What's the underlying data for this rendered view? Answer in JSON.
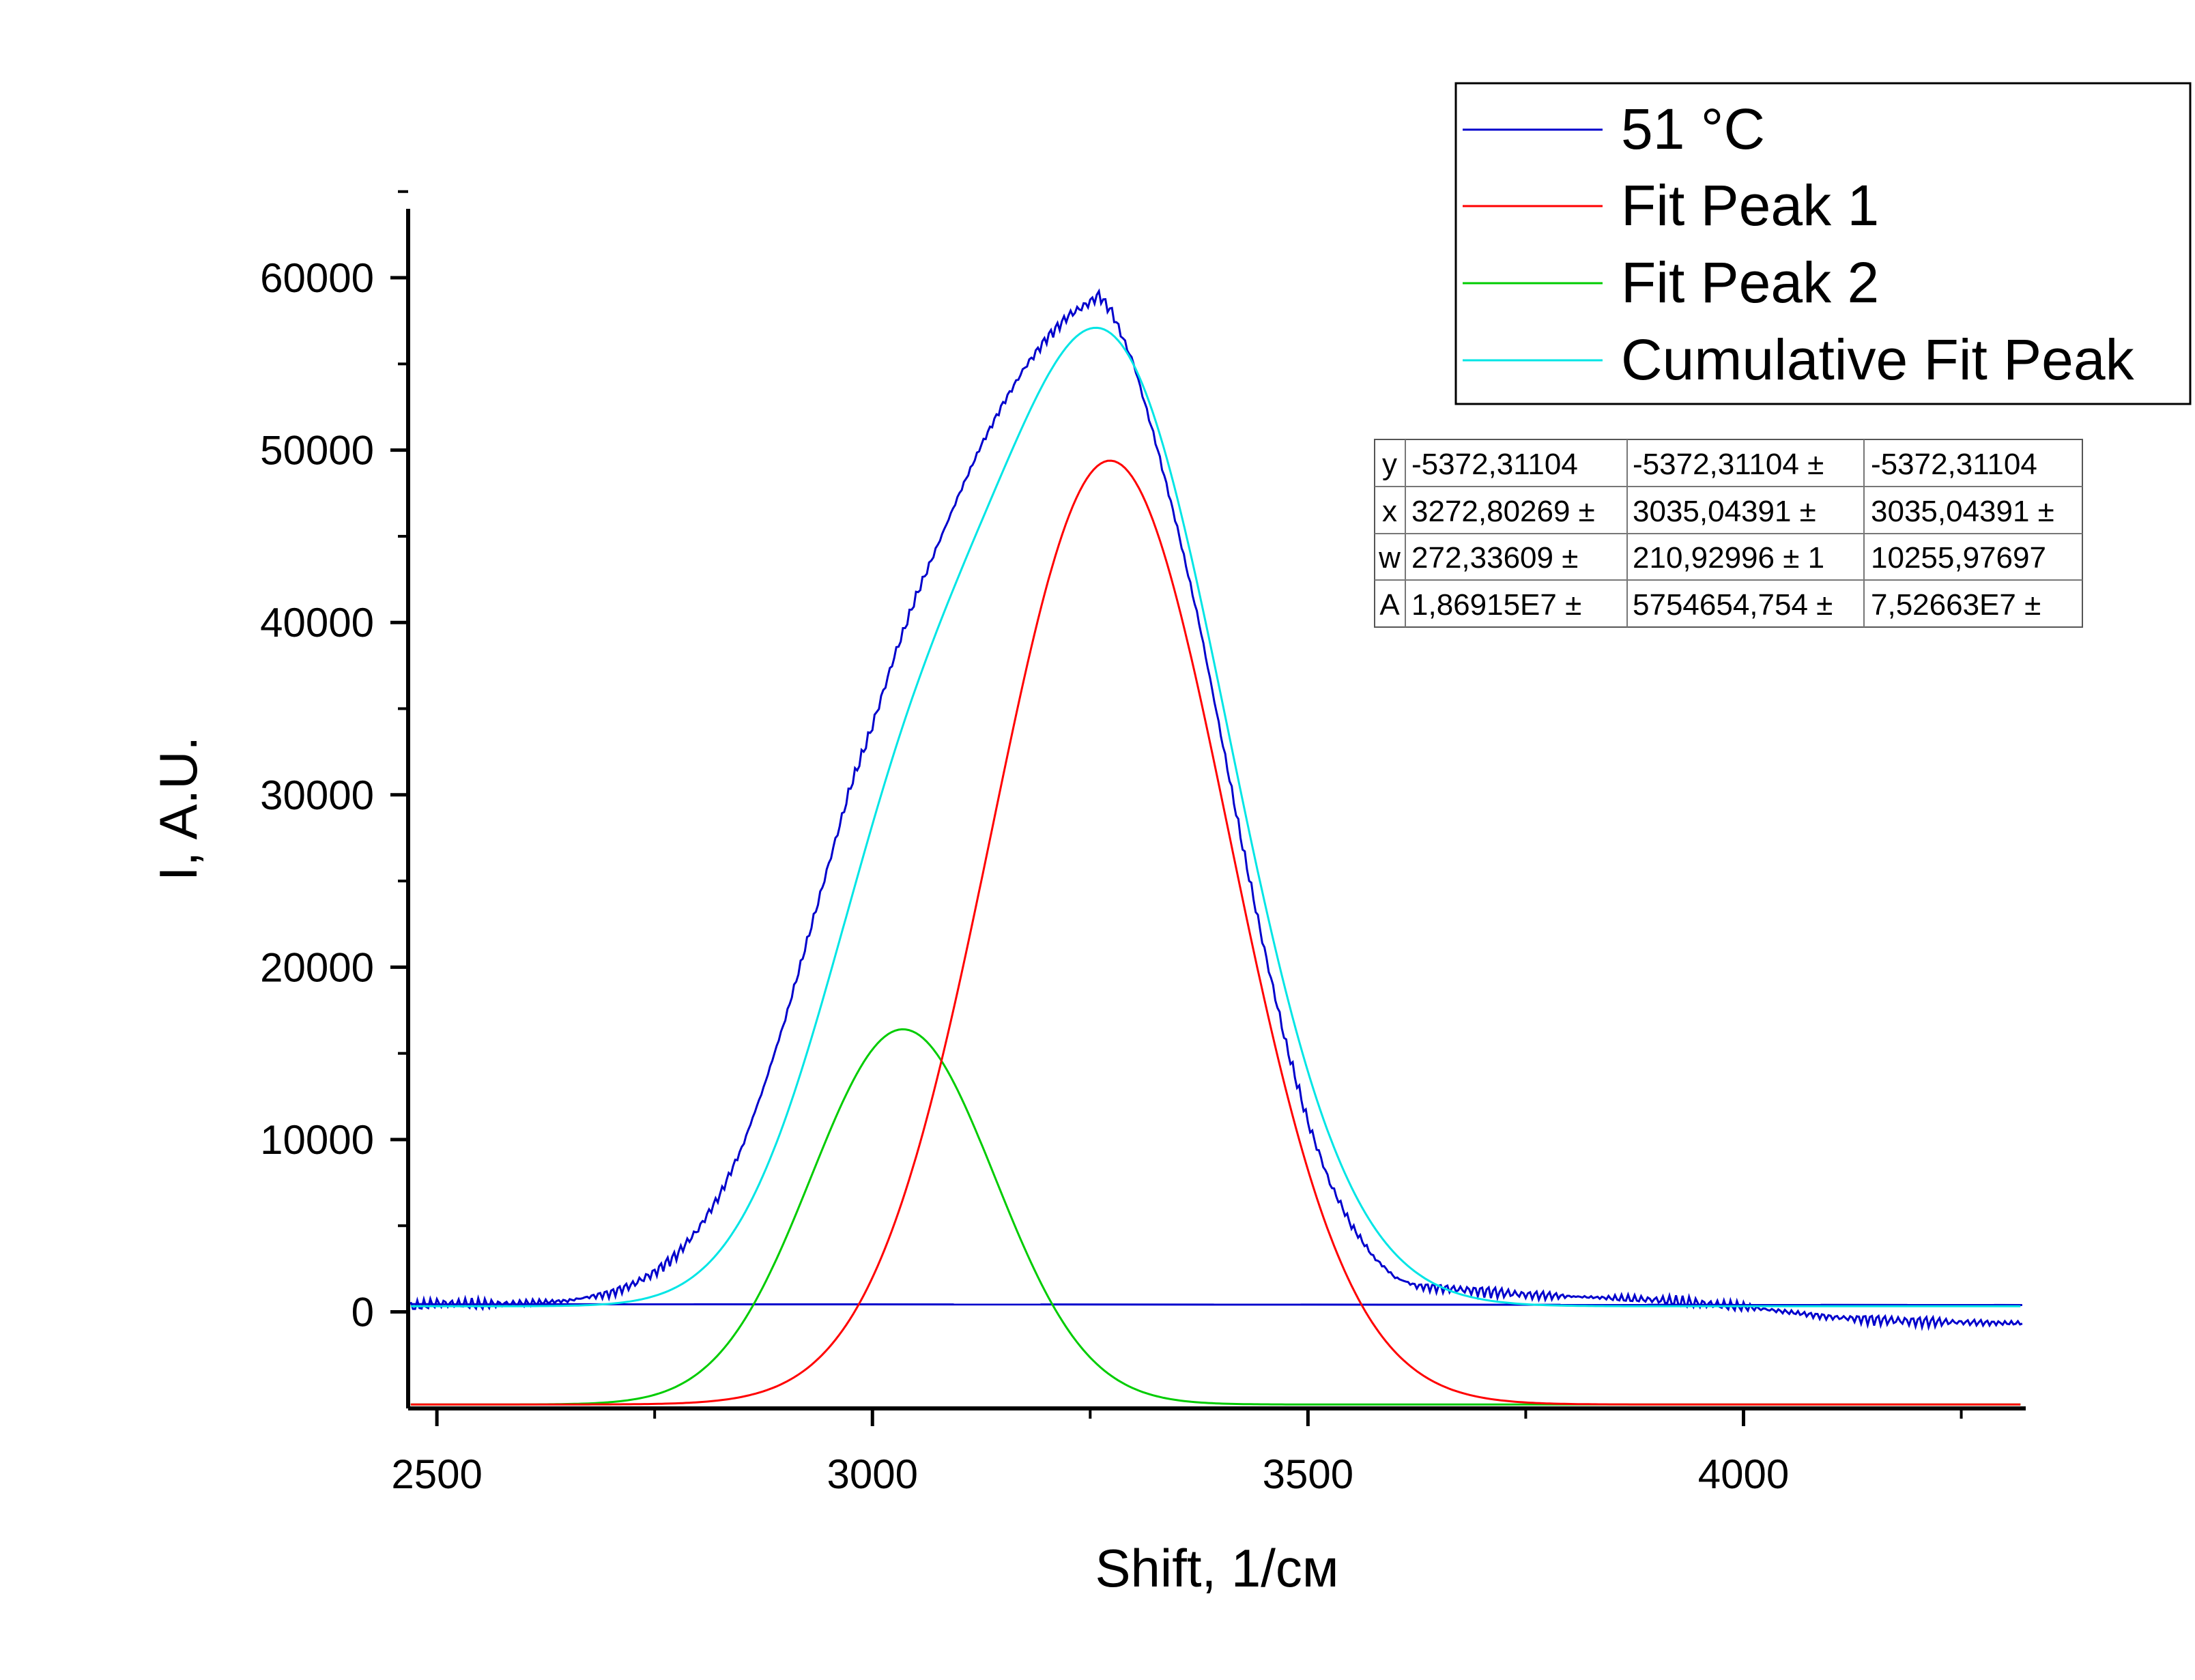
{
  "chart_data": {
    "type": "line",
    "title": "",
    "xlabel": "Shift, 1/см",
    "ylabel": "I, A.U.",
    "xlim": [
      2467,
      4324
    ],
    "ylim": [
      -5600,
      64000
    ],
    "x_ticks": [
      2500,
      3000,
      3500,
      4000
    ],
    "x_tick_labels": [
      "2500",
      "3000",
      "3500",
      "4000"
    ],
    "y_ticks": [
      0,
      10000,
      20000,
      30000,
      40000,
      50000,
      60000
    ],
    "y_tick_labels": [
      "0",
      "10000",
      "20000",
      "30000",
      "40000",
      "50000",
      "60000"
    ],
    "grid": false,
    "legend_position": "top-right",
    "fit_model": {
      "baseline": -5372.31104,
      "peak1": {
        "xc": 3272.80269,
        "w": 272.33609,
        "A": 18691500.0
      },
      "peak2": {
        "xc": 3035.04391,
        "w": 210.92996,
        "A": 5754654.754
      }
    },
    "series": [
      {
        "name": "51 °C",
        "color": "#0000cc",
        "x": [
          2470,
          2500,
          2550,
          2600,
          2650,
          2700,
          2725,
          2750,
          2775,
          2800,
          2825,
          2850,
          2875,
          2900,
          2925,
          2950,
          2975,
          3000,
          3025,
          3050,
          3075,
          3100,
          3125,
          3150,
          3175,
          3200,
          3225,
          3250,
          3260,
          3275,
          3300,
          3325,
          3350,
          3375,
          3400,
          3425,
          3450,
          3475,
          3500,
          3525,
          3550,
          3575,
          3600,
          3625,
          3650,
          3700,
          3750,
          3800,
          3850,
          3900,
          3950,
          4000,
          4050,
          4100,
          4150,
          4200,
          4250,
          4300,
          4320
        ],
        "y": [
          300,
          500,
          450,
          500,
          650,
          1100,
          1600,
          2300,
          3300,
          4800,
          6800,
          9500,
          13000,
          17000,
          21500,
          26000,
          30500,
          34000,
          38000,
          41500,
          44500,
          47500,
          50300,
          52700,
          54800,
          56500,
          57800,
          58600,
          59000,
          58000,
          55000,
          50500,
          45500,
          40000,
          33500,
          27000,
          21000,
          15500,
          11000,
          7500,
          5000,
          3200,
          2000,
          1500,
          1400,
          1200,
          1000,
          900,
          800,
          700,
          500,
          300,
          0,
          -300,
          -450,
          -550,
          -600,
          -650,
          -650
        ]
      },
      {
        "name": "Fit Peak 1",
        "color": "#ff0000",
        "peak": "peak1"
      },
      {
        "name": "Fit Peak 2",
        "color": "#00cc00",
        "peak": "peak2"
      },
      {
        "name": "Cumulative Fit Peak",
        "color": "#00e5e5",
        "peak": "cumulative"
      }
    ],
    "baseline_line": {
      "color": "#0000cc",
      "y": [
        450,
        400
      ]
    },
    "fit_table": {
      "rows": [
        [
          "y",
          "-5372,31104",
          "-5372,31104 ±",
          "-5372,31104"
        ],
        [
          "x",
          "3272,80269 ±",
          "3035,04391 ±",
          "3035,04391 ±"
        ],
        [
          "w",
          "272,33609 ±",
          "210,92996 ± 1",
          "10255,97697"
        ],
        [
          "A",
          "1,86915E7 ±",
          "5754654,754 ±",
          "7,52663E7 ±"
        ]
      ]
    }
  }
}
